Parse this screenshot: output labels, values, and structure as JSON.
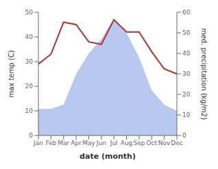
{
  "chart_data": {
    "type": "line",
    "xlabel": "date (month)",
    "ylabel": "max temp (C)",
    "y2label": "med. precipitation (kg/m2)",
    "categories": [
      "Jan",
      "Feb",
      "Mar",
      "Apr",
      "May",
      "Jun",
      "Jul",
      "Aug",
      "Sep",
      "Oct",
      "Nov",
      "Dec"
    ],
    "series": [
      {
        "type": "area",
        "axis": "y2",
        "color": "#b8c8ee",
        "values": [
          13,
          13,
          15,
          30,
          40,
          47,
          57,
          50,
          38,
          22,
          15,
          12
        ]
      },
      {
        "type": "line",
        "color": "#b03030",
        "values": [
          29,
          33,
          46,
          45,
          38,
          37,
          47,
          42,
          42,
          34,
          27,
          25
        ]
      }
    ],
    "ylim": [
      0,
      50
    ],
    "yticks": [
      0,
      10,
      20,
      30,
      40,
      50
    ],
    "y2lim": [
      0,
      60
    ],
    "y2ticks": [
      0,
      10,
      20,
      30,
      40,
      50,
      60
    ],
    "grid": false
  }
}
